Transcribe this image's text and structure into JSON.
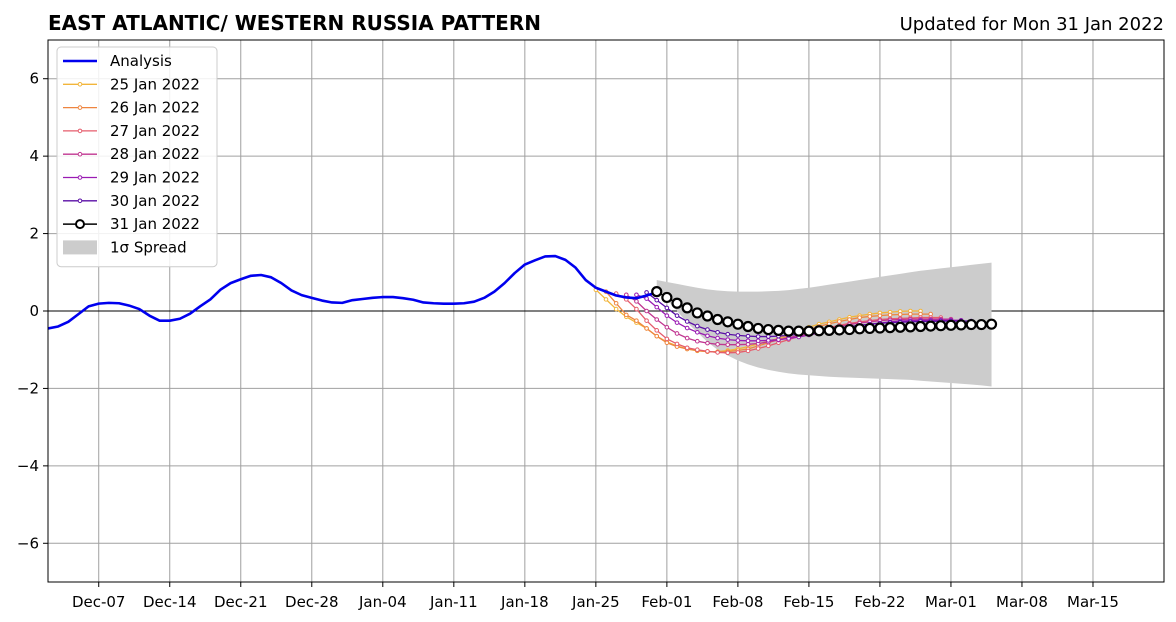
{
  "chart_data": {
    "type": "line",
    "title": "EAST ATLANTIC/ WESTERN RUSSIA PATTERN",
    "subtitle": "Updated for Mon 31 Jan 2022",
    "xlabel": "",
    "ylabel": "",
    "x_range": [
      "2021-12-02",
      "2022-03-22"
    ],
    "ylim": [
      -7,
      7
    ],
    "yticks": [
      -6,
      -4,
      -2,
      0,
      2,
      4,
      6
    ],
    "xticks": [
      {
        "label": "Dec-07",
        "date": "2021-12-07"
      },
      {
        "label": "Dec-14",
        "date": "2021-12-14"
      },
      {
        "label": "Dec-21",
        "date": "2021-12-21"
      },
      {
        "label": "Dec-28",
        "date": "2021-12-28"
      },
      {
        "label": "Jan-04",
        "date": "2022-01-04"
      },
      {
        "label": "Jan-11",
        "date": "2022-01-11"
      },
      {
        "label": "Jan-18",
        "date": "2022-01-18"
      },
      {
        "label": "Jan-25",
        "date": "2022-01-25"
      },
      {
        "label": "Feb-01",
        "date": "2022-02-01"
      },
      {
        "label": "Feb-08",
        "date": "2022-02-08"
      },
      {
        "label": "Feb-15",
        "date": "2022-02-15"
      },
      {
        "label": "Feb-22",
        "date": "2022-02-22"
      },
      {
        "label": "Mar-01",
        "date": "2022-03-01"
      },
      {
        "label": "Mar-08",
        "date": "2022-03-08"
      },
      {
        "label": "Mar-15",
        "date": "2022-03-15"
      }
    ],
    "grid": true,
    "legend_position": "top-left",
    "analysis": {
      "name": "Analysis",
      "color": "#0000ee",
      "points": [
        [
          "2021-12-02",
          -0.45
        ],
        [
          "2021-12-03",
          -0.4
        ],
        [
          "2021-12-04",
          -0.28
        ],
        [
          "2021-12-05",
          -0.08
        ],
        [
          "2021-12-06",
          0.12
        ],
        [
          "2021-12-07",
          0.19
        ],
        [
          "2021-12-08",
          0.21
        ],
        [
          "2021-12-09",
          0.2
        ],
        [
          "2021-12-10",
          0.14
        ],
        [
          "2021-12-11",
          0.05
        ],
        [
          "2021-12-12",
          -0.12
        ],
        [
          "2021-12-13",
          -0.25
        ],
        [
          "2021-12-14",
          -0.25
        ],
        [
          "2021-12-15",
          -0.2
        ],
        [
          "2021-12-16",
          -0.07
        ],
        [
          "2021-12-17",
          0.12
        ],
        [
          "2021-12-18",
          0.3
        ],
        [
          "2021-12-19",
          0.55
        ],
        [
          "2021-12-20",
          0.72
        ],
        [
          "2021-12-21",
          0.82
        ],
        [
          "2021-12-22",
          0.91
        ],
        [
          "2021-12-23",
          0.93
        ],
        [
          "2021-12-24",
          0.87
        ],
        [
          "2021-12-25",
          0.72
        ],
        [
          "2021-12-26",
          0.53
        ],
        [
          "2021-12-27",
          0.41
        ],
        [
          "2021-12-28",
          0.34
        ],
        [
          "2021-12-29",
          0.27
        ],
        [
          "2021-12-30",
          0.22
        ],
        [
          "2021-12-31",
          0.21
        ],
        [
          "2022-01-01",
          0.28
        ],
        [
          "2022-01-02",
          0.31
        ],
        [
          "2022-01-03",
          0.34
        ],
        [
          "2022-01-04",
          0.36
        ],
        [
          "2022-01-05",
          0.36
        ],
        [
          "2022-01-06",
          0.33
        ],
        [
          "2022-01-07",
          0.29
        ],
        [
          "2022-01-08",
          0.22
        ],
        [
          "2022-01-09",
          0.2
        ],
        [
          "2022-01-10",
          0.19
        ],
        [
          "2022-01-11",
          0.19
        ],
        [
          "2022-01-12",
          0.2
        ],
        [
          "2022-01-13",
          0.24
        ],
        [
          "2022-01-14",
          0.34
        ],
        [
          "2022-01-15",
          0.5
        ],
        [
          "2022-01-16",
          0.72
        ],
        [
          "2022-01-17",
          0.98
        ],
        [
          "2022-01-18",
          1.2
        ],
        [
          "2022-01-19",
          1.31
        ],
        [
          "2022-01-20",
          1.41
        ],
        [
          "2022-01-21",
          1.42
        ],
        [
          "2022-01-22",
          1.32
        ],
        [
          "2022-01-23",
          1.12
        ],
        [
          "2022-01-24",
          0.8
        ],
        [
          "2022-01-25",
          0.6
        ],
        [
          "2022-01-26",
          0.5
        ],
        [
          "2022-01-27",
          0.4
        ],
        [
          "2022-01-28",
          0.35
        ],
        [
          "2022-01-29",
          0.33
        ],
        [
          "2022-01-30",
          0.4
        ],
        [
          "2022-01-31",
          0.48
        ]
      ]
    },
    "forecasts": [
      {
        "name": "25 Jan 2022",
        "color": "#f2b53a",
        "start": "2022-01-25",
        "values": [
          0.55,
          0.3,
          0.05,
          -0.15,
          -0.3,
          -0.45,
          -0.65,
          -0.8,
          -0.9,
          -0.98,
          -1.03,
          -1.05,
          -1.05,
          -1.02,
          -0.98,
          -0.92,
          -0.85,
          -0.78,
          -0.7,
          -0.6,
          -0.5,
          -0.42,
          -0.34,
          -0.28,
          -0.22,
          -0.16,
          -0.12,
          -0.08,
          -0.05,
          -0.03,
          -0.01,
          0.0,
          0.0
        ]
      },
      {
        "name": "26 Jan 2022",
        "color": "#ee8540",
        "start": "2022-01-26",
        "values": [
          0.5,
          0.2,
          -0.1,
          -0.25,
          -0.45,
          -0.65,
          -0.82,
          -0.92,
          -0.98,
          -1.02,
          -1.05,
          -1.06,
          -1.05,
          -1.02,
          -0.98,
          -0.9,
          -0.82,
          -0.74,
          -0.65,
          -0.56,
          -0.48,
          -0.4,
          -0.33,
          -0.27,
          -0.22,
          -0.17,
          -0.14,
          -0.12,
          -0.1,
          -0.09,
          -0.08,
          -0.08,
          -0.08
        ]
      },
      {
        "name": "27 Jan 2022",
        "color": "#e55c6c",
        "start": "2022-01-27",
        "values": [
          0.45,
          0.3,
          0.05,
          -0.25,
          -0.5,
          -0.72,
          -0.85,
          -0.95,
          -1.0,
          -1.04,
          -1.07,
          -1.08,
          -1.07,
          -1.03,
          -0.97,
          -0.9,
          -0.82,
          -0.74,
          -0.66,
          -0.58,
          -0.5,
          -0.43,
          -0.37,
          -0.32,
          -0.28,
          -0.25,
          -0.22,
          -0.2,
          -0.19,
          -0.18,
          -0.17,
          -0.17,
          -0.17
        ]
      },
      {
        "name": "28 Jan 2022",
        "color": "#c03590",
        "start": "2022-01-28",
        "values": [
          0.42,
          0.25,
          0.0,
          -0.22,
          -0.42,
          -0.58,
          -0.7,
          -0.78,
          -0.83,
          -0.86,
          -0.87,
          -0.87,
          -0.86,
          -0.84,
          -0.8,
          -0.75,
          -0.69,
          -0.63,
          -0.57,
          -0.51,
          -0.45,
          -0.4,
          -0.35,
          -0.31,
          -0.28,
          -0.25,
          -0.23,
          -0.22,
          -0.21,
          -0.21,
          -0.21,
          -0.21,
          -0.21
        ]
      },
      {
        "name": "29 Jan 2022",
        "color": "#9a1bb3",
        "start": "2022-01-29",
        "values": [
          0.42,
          0.32,
          0.1,
          -0.12,
          -0.3,
          -0.44,
          -0.55,
          -0.64,
          -0.7,
          -0.74,
          -0.76,
          -0.77,
          -0.77,
          -0.76,
          -0.74,
          -0.71,
          -0.67,
          -0.62,
          -0.57,
          -0.52,
          -0.47,
          -0.42,
          -0.38,
          -0.34,
          -0.31,
          -0.28,
          -0.26,
          -0.25,
          -0.24,
          -0.24,
          -0.24,
          -0.24,
          -0.24
        ]
      },
      {
        "name": "30 Jan 2022",
        "color": "#5a0ea6",
        "start": "2022-01-30",
        "values": [
          0.48,
          0.28,
          0.08,
          -0.12,
          -0.27,
          -0.39,
          -0.48,
          -0.55,
          -0.6,
          -0.63,
          -0.65,
          -0.66,
          -0.66,
          -0.65,
          -0.63,
          -0.6,
          -0.56,
          -0.52,
          -0.48,
          -0.44,
          -0.4,
          -0.37,
          -0.34,
          -0.32,
          -0.3,
          -0.29,
          -0.28,
          -0.27,
          -0.27,
          -0.26,
          -0.26,
          -0.26,
          -0.26
        ]
      }
    ],
    "current": {
      "name": "31 Jan 2022",
      "color": "#000000",
      "start": "2022-01-31",
      "values": [
        0.5,
        0.35,
        0.2,
        0.08,
        -0.05,
        -0.13,
        -0.22,
        -0.28,
        -0.34,
        -0.4,
        -0.45,
        -0.48,
        -0.5,
        -0.52,
        -0.52,
        -0.52,
        -0.51,
        -0.5,
        -0.49,
        -0.48,
        -0.46,
        -0.45,
        -0.44,
        -0.43,
        -0.42,
        -0.41,
        -0.4,
        -0.39,
        -0.38,
        -0.37,
        -0.36,
        -0.35,
        -0.35,
        -0.34
      ]
    },
    "spread": {
      "name": "1σ Spread",
      "color": "#cccccc",
      "start": "2022-01-31",
      "upper": [
        0.8,
        0.75,
        0.7,
        0.65,
        0.6,
        0.56,
        0.53,
        0.51,
        0.5,
        0.5,
        0.5,
        0.51,
        0.52,
        0.54,
        0.57,
        0.6,
        0.64,
        0.68,
        0.72,
        0.76,
        0.8,
        0.84,
        0.88,
        0.92,
        0.96,
        1.0,
        1.04,
        1.07,
        1.1,
        1.13,
        1.16,
        1.19,
        1.22,
        1.25
      ],
      "lower": [
        0.6,
        0.3,
        0.0,
        -0.3,
        -0.55,
        -0.8,
        -1.0,
        -1.15,
        -1.28,
        -1.38,
        -1.46,
        -1.52,
        -1.57,
        -1.61,
        -1.64,
        -1.66,
        -1.68,
        -1.7,
        -1.71,
        -1.72,
        -1.73,
        -1.74,
        -1.75,
        -1.76,
        -1.77,
        -1.78,
        -1.8,
        -1.82,
        -1.84,
        -1.86,
        -1.88,
        -1.9,
        -1.92,
        -1.95
      ]
    }
  }
}
